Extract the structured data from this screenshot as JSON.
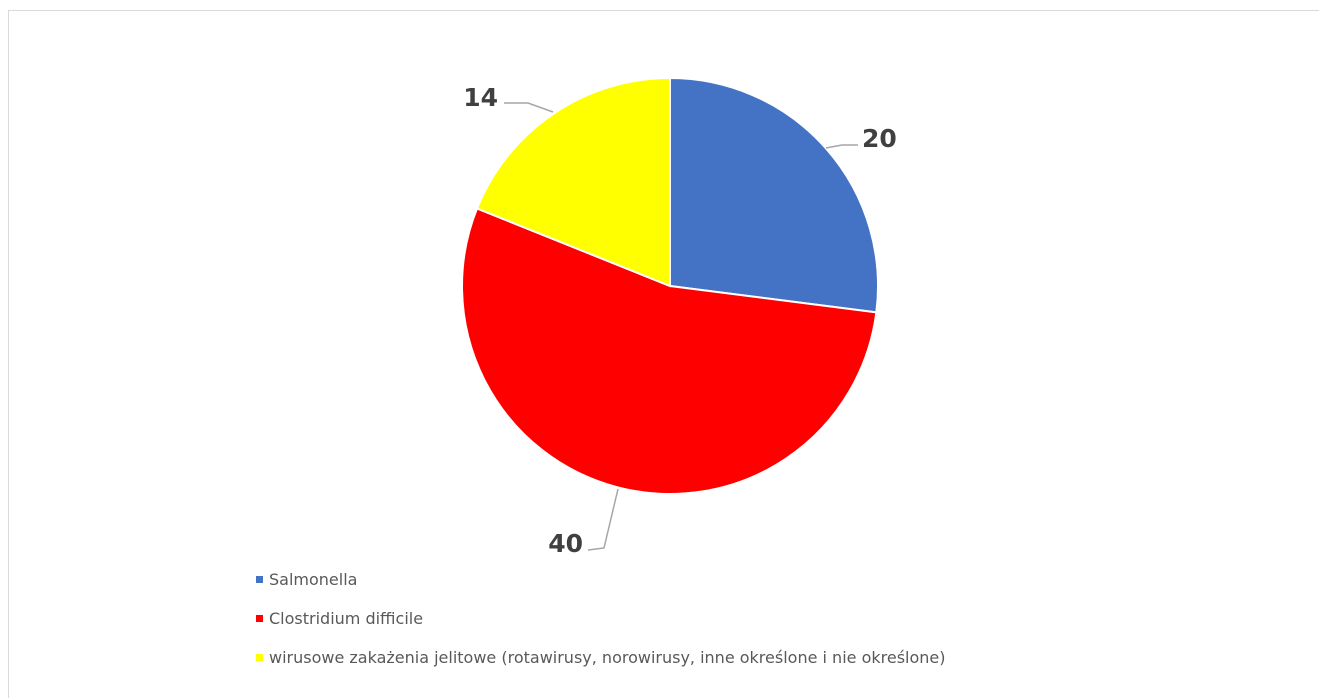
{
  "chart_data": {
    "type": "pie",
    "title": "",
    "categories": [
      "Salmonella",
      "Clostridium difficile",
      "wirusowe zakażenia jelitowe (rotawirusy, norowirusy, inne określone i nie określone)"
    ],
    "values": [
      20,
      40,
      14
    ],
    "data_labels": [
      "20",
      "40",
      "14"
    ],
    "colors": [
      "#4472C4",
      "#FF0000",
      "#FFFF00"
    ],
    "start_angle_deg": 0,
    "direction": "clockwise",
    "legend": "bottom-left",
    "data_label_style": "outside-with-leader-lines"
  }
}
